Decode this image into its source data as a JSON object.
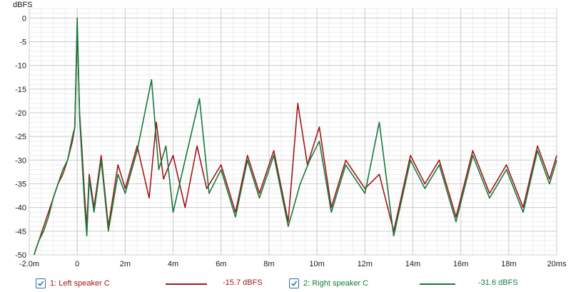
{
  "chart_data": {
    "type": "line",
    "ylabel": "dBFS",
    "xlabel": "",
    "xlim": [
      -2.0,
      20.0
    ],
    "ylim": [
      -50,
      2
    ],
    "x_unit": "ms",
    "x_ticks": [
      -2.0,
      0,
      2,
      4,
      6,
      8,
      10,
      12,
      14,
      16,
      18,
      20
    ],
    "x_tick_labels": [
      "-2.0m",
      "0",
      "2m",
      "4m",
      "6m",
      "8m",
      "10m",
      "12m",
      "14m",
      "16m",
      "18m",
      "20ms"
    ],
    "y_ticks": [
      0,
      -5,
      -10,
      -15,
      -20,
      -25,
      -30,
      -35,
      -40,
      -45,
      -50
    ],
    "y_tick_labels": [
      "0",
      "-5",
      "-10",
      "-15",
      "-20",
      "-25",
      "-30",
      "-35",
      "-40",
      "-45",
      "-50"
    ],
    "grid": true,
    "series": [
      {
        "name": "1: Left speaker C",
        "color": "#a01818",
        "legend_value": "-15.7 dBFS",
        "x": [
          -1.8,
          -1.6,
          -1.4,
          -1.2,
          -1.0,
          -0.8,
          -0.6,
          -0.4,
          -0.2,
          -0.1,
          0.0,
          0.1,
          0.2,
          0.3,
          0.4,
          0.5,
          0.7,
          1.0,
          1.3,
          1.7,
          2.0,
          2.5,
          3.0,
          3.3,
          3.6,
          4.0,
          4.5,
          5.0,
          5.4,
          6.0,
          6.6,
          7.1,
          7.6,
          8.2,
          8.8,
          9.2,
          9.6,
          10.1,
          10.6,
          11.2,
          12.0,
          12.6,
          13.2,
          13.9,
          14.5,
          15.1,
          15.8,
          16.5,
          17.2,
          17.9,
          18.6,
          19.2,
          19.7,
          20.0
        ],
        "y": [
          -50,
          -47,
          -44,
          -41,
          -38,
          -35,
          -33,
          -30,
          -26,
          -23,
          -2,
          -20,
          -28,
          -37,
          -44,
          -33,
          -40,
          -29,
          -44,
          -31,
          -36,
          -27,
          -38,
          -22,
          -34,
          -29,
          -40,
          -27,
          -36,
          -31,
          -41,
          -29,
          -37,
          -28,
          -43,
          -18,
          -31,
          -23,
          -40,
          -30,
          -36,
          -33,
          -45,
          -29,
          -35,
          -30,
          -42,
          -28,
          -37,
          -31,
          -40,
          -27,
          -34,
          -29
        ]
      },
      {
        "name": "2: Right speaker C",
        "color": "#157a3c",
        "legend_value": "-31.6 dBFS",
        "x": [
          -1.8,
          -1.6,
          -1.4,
          -1.2,
          -1.0,
          -0.8,
          -0.6,
          -0.4,
          -0.2,
          -0.1,
          0.0,
          0.1,
          0.2,
          0.3,
          0.4,
          0.5,
          0.7,
          1.0,
          1.3,
          1.7,
          2.0,
          2.5,
          3.1,
          3.4,
          3.7,
          4.0,
          4.5,
          5.1,
          5.5,
          6.0,
          6.6,
          7.1,
          7.6,
          8.2,
          8.8,
          9.3,
          9.7,
          10.1,
          10.6,
          11.2,
          12.0,
          12.6,
          13.2,
          13.9,
          14.5,
          15.1,
          15.8,
          16.5,
          17.2,
          17.9,
          18.6,
          19.2,
          19.7,
          20.0
        ],
        "y": [
          -50,
          -47,
          -45,
          -42,
          -38,
          -35,
          -32,
          -30,
          -25,
          -23,
          0,
          -21,
          -30,
          -39,
          -46,
          -34,
          -41,
          -30,
          -45,
          -33,
          -37,
          -28,
          -13,
          -32,
          -27,
          -41,
          -30,
          -17,
          -37,
          -32,
          -42,
          -30,
          -38,
          -29,
          -44,
          -35,
          -30,
          -26,
          -41,
          -31,
          -37,
          -22,
          -46,
          -30,
          -36,
          -31,
          -43,
          -29,
          -38,
          -32,
          -41,
          -28,
          -35,
          -30
        ]
      }
    ]
  }
}
